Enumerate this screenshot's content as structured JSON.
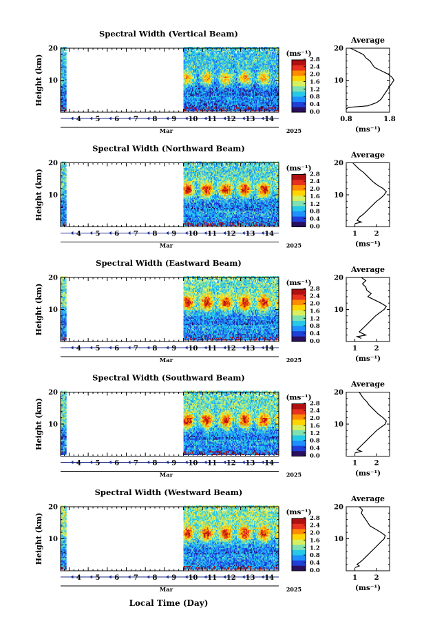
{
  "figure": {
    "xlabel": "Local Time (Day)",
    "month": "Mar",
    "year": "2025",
    "days": [
      "4",
      "5",
      "6",
      "7",
      "8",
      "9",
      "10",
      "11",
      "12",
      "13",
      "14"
    ],
    "ylabel": "Height (km)",
    "unit": "(ms⁻¹)",
    "profile_title": "Average",
    "colorbar_ticks": [
      "0.0",
      "0.4",
      "0.8",
      "1.2",
      "1.6",
      "2.0",
      "2.4",
      "2.8"
    ],
    "colormap": [
      "#2a0f5e",
      "#1e3fd8",
      "#1e90ff",
      "#28c8e8",
      "#7fe0b0",
      "#d8f060",
      "#ffd400",
      "#ff8c00",
      "#e8321e",
      "#b01010"
    ],
    "no_data_color": "#ffffff"
  },
  "chart_data": [
    {
      "type": "heatmap",
      "title": "Spectral Width (Vertical Beam)",
      "variable": "spectral width",
      "x_days": [
        3.55,
        15.0
      ],
      "data_segments": [
        [
          3.55,
          3.85
        ],
        [
          10.0,
          15.0
        ]
      ],
      "ylim": [
        0,
        20
      ],
      "yticks": [
        10,
        20
      ],
      "clim": [
        0.0,
        2.8
      ],
      "pattern": {
        "max_height_km": 10.5,
        "max_value": 2.0,
        "low_layer_value": 0.5,
        "high_layer_value": 1.0,
        "diurnal_peaks_days": [
          11.2,
          12.2,
          13.2,
          14.2
        ]
      },
      "average_profile": {
        "xlim": [
          0.8,
          1.8
        ],
        "xticks": [
          "0.8",
          "1.8"
        ],
        "ylim": [
          0,
          20
        ],
        "height_km": [
          1,
          1.5,
          2,
          3,
          4,
          5,
          6,
          7,
          8,
          9,
          10,
          11,
          12,
          13,
          14,
          15,
          16,
          17,
          18,
          19,
          20
        ],
        "value": [
          0.8,
          0.85,
          1.3,
          1.5,
          1.6,
          1.65,
          1.7,
          1.75,
          1.8,
          1.85,
          1.9,
          1.85,
          1.75,
          1.6,
          1.45,
          1.4,
          1.35,
          1.25,
          1.2,
          1.05,
          0.9
        ]
      }
    },
    {
      "type": "heatmap",
      "title": "Spectral Width (Northward Beam)",
      "variable": "spectral width",
      "x_days": [
        3.55,
        15.0
      ],
      "data_segments": [
        [
          3.55,
          3.85
        ],
        [
          10.0,
          15.0
        ]
      ],
      "ylim": [
        0,
        20
      ],
      "yticks": [
        10,
        20
      ],
      "clim": [
        0.0,
        2.8
      ],
      "pattern": {
        "max_height_km": 11.5,
        "max_value": 2.6,
        "low_layer_value": 0.6,
        "high_layer_value": 1.1,
        "diurnal_peaks_days": [
          11.2,
          12.2,
          13.2,
          14.2
        ]
      },
      "average_profile": {
        "xlim": [
          0.6,
          2.6
        ],
        "xticks": [
          "1",
          "2"
        ],
        "ylim": [
          0,
          20
        ],
        "height_km": [
          1,
          1.5,
          2,
          3,
          4,
          5,
          6,
          7,
          8,
          9,
          10,
          11,
          12,
          13,
          14,
          15,
          16,
          17,
          18,
          19,
          20
        ],
        "value": [
          1.0,
          1.3,
          1.1,
          1.2,
          1.4,
          1.55,
          1.7,
          1.85,
          2.0,
          2.2,
          2.35,
          2.45,
          2.3,
          2.05,
          1.85,
          1.7,
          1.55,
          1.4,
          1.2,
          1.05,
          0.9
        ]
      }
    },
    {
      "type": "heatmap",
      "title": "Spectral Width (Eastward Beam)",
      "variable": "spectral width",
      "x_days": [
        3.55,
        15.0
      ],
      "data_segments": [
        [
          3.55,
          3.85
        ],
        [
          10.0,
          15.0
        ]
      ],
      "ylim": [
        0,
        20
      ],
      "yticks": [
        10,
        20
      ],
      "clim": [
        0.0,
        2.8
      ],
      "pattern": {
        "max_height_km": 12.0,
        "max_value": 2.6,
        "low_layer_value": 0.6,
        "high_layer_value": 1.2,
        "diurnal_peaks_days": [
          11.2,
          12.2,
          13.2,
          14.2
        ]
      },
      "average_profile": {
        "xlim": [
          0.6,
          2.6
        ],
        "xticks": [
          "1",
          "2"
        ],
        "ylim": [
          0,
          20
        ],
        "height_km": [
          1,
          1.5,
          2,
          3,
          4,
          5,
          6,
          7,
          8,
          9,
          10,
          11,
          12,
          13,
          14,
          15,
          16,
          17,
          18,
          19,
          20
        ],
        "value": [
          1.3,
          1.1,
          1.5,
          1.2,
          1.35,
          1.5,
          1.65,
          1.8,
          1.95,
          2.15,
          2.35,
          2.45,
          2.2,
          1.9,
          1.6,
          1.75,
          1.55,
          1.5,
          1.35,
          1.5,
          1.3
        ]
      }
    },
    {
      "type": "heatmap",
      "title": "Spectral Width (Southward Beam)",
      "variable": "spectral width",
      "x_days": [
        3.55,
        15.0
      ],
      "data_segments": [
        [
          3.55,
          3.85
        ],
        [
          10.0,
          15.0
        ]
      ],
      "ylim": [
        0,
        20
      ],
      "yticks": [
        10,
        20
      ],
      "clim": [
        0.0,
        2.8
      ],
      "pattern": {
        "max_height_km": 11.0,
        "max_value": 2.6,
        "low_layer_value": 0.6,
        "high_layer_value": 1.2,
        "diurnal_peaks_days": [
          11.2,
          12.2,
          13.2,
          14.2
        ]
      },
      "average_profile": {
        "xlim": [
          0.6,
          2.6
        ],
        "xticks": [
          "1",
          "2"
        ],
        "ylim": [
          0,
          20
        ],
        "height_km": [
          1,
          1.5,
          2,
          3,
          4,
          5,
          6,
          7,
          8,
          9,
          10,
          11,
          12,
          13,
          14,
          15,
          16,
          17,
          18,
          19,
          20
        ],
        "value": [
          1.0,
          1.3,
          1.1,
          1.25,
          1.4,
          1.55,
          1.7,
          1.85,
          2.0,
          2.2,
          2.4,
          2.45,
          2.3,
          2.1,
          1.95,
          1.8,
          1.65,
          1.55,
          1.4,
          1.3,
          1.2
        ]
      }
    },
    {
      "type": "heatmap",
      "title": "Spectral Width (Westward Beam)",
      "variable": "spectral width",
      "x_days": [
        3.55,
        15.0
      ],
      "data_segments": [
        [
          3.55,
          3.85
        ],
        [
          10.0,
          15.0
        ]
      ],
      "ylim": [
        0,
        20
      ],
      "yticks": [
        10,
        20
      ],
      "clim": [
        0.0,
        2.8
      ],
      "pattern": {
        "max_height_km": 11.5,
        "max_value": 2.5,
        "low_layer_value": 0.6,
        "high_layer_value": 1.3,
        "diurnal_peaks_days": [
          11.2,
          12.2,
          13.2,
          14.2
        ]
      },
      "average_profile": {
        "xlim": [
          0.6,
          2.6
        ],
        "xticks": [
          "1",
          "2"
        ],
        "ylim": [
          0,
          20
        ],
        "height_km": [
          1,
          1.5,
          2,
          3,
          4,
          5,
          6,
          7,
          8,
          9,
          10,
          11,
          12,
          13,
          14,
          15,
          16,
          17,
          18,
          19,
          20
        ],
        "value": [
          1.0,
          1.2,
          1.1,
          1.3,
          1.45,
          1.6,
          1.75,
          1.9,
          2.05,
          2.2,
          2.35,
          2.4,
          2.2,
          1.95,
          1.7,
          1.6,
          1.5,
          1.4,
          1.3,
          1.35,
          1.2
        ]
      }
    }
  ]
}
